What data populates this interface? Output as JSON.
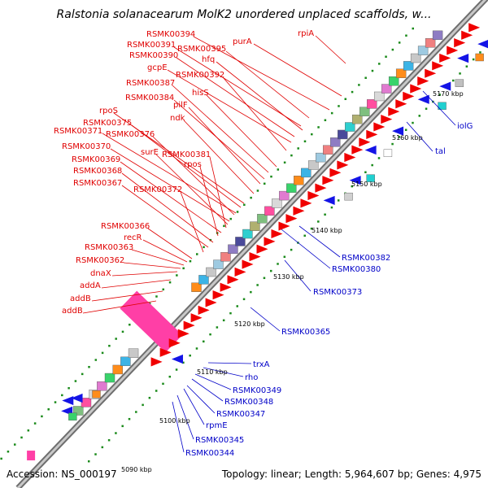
{
  "title": "Ralstonia solanacearum MolK2 unordered unplaced scaffolds, w...",
  "footer": {
    "accession": "Accession: NS_000197",
    "stats": "Topology: linear; Length: 5,964,607 bp; Genes: 4,975"
  },
  "colors": {
    "forward_label": "#e00000",
    "reverse_label": "#0000c8",
    "backbone": "#8c8c8c",
    "tick": "#1a8a1a"
  },
  "scale_ticks": [
    "5090 kbp",
    "5100 kbp",
    "5110 kbp",
    "5120 kbp",
    "5130 kbp",
    "5140 kbp",
    "5150 kbp",
    "5160 kbp",
    "5170 kbp"
  ],
  "forward_genes": [
    "rpiA",
    "purA",
    "RSMK00394",
    "RSMK00395",
    "RSMK00391",
    "hfq",
    "RSMK00390",
    "gcpE",
    "RSMK00392",
    "hisS",
    "RSMK00387",
    "RSMK00384",
    "pilF",
    "ndk",
    "rpoS",
    "RSMK00375",
    "RSMK00371",
    "RSMK00376",
    "RSMK00370",
    "surE",
    "RSMK00381",
    "RSMK00369",
    "rpos",
    "RSMK00368",
    "RSMK00367",
    "RSMK00372",
    "RSMK00366",
    "recR",
    "RSMK00363",
    "RSMK00362",
    "dnaX",
    "addA",
    "addB",
    "addB"
  ],
  "reverse_genes": [
    "iolG",
    "tal",
    "RSMK00382",
    "RSMK00380",
    "RSMK00373",
    "RSMK00365",
    "trxA",
    "rho",
    "RSMK00349",
    "RSMK00348",
    "RSMK00347",
    "rpmE",
    "RSMK00345",
    "RSMK00344"
  ]
}
